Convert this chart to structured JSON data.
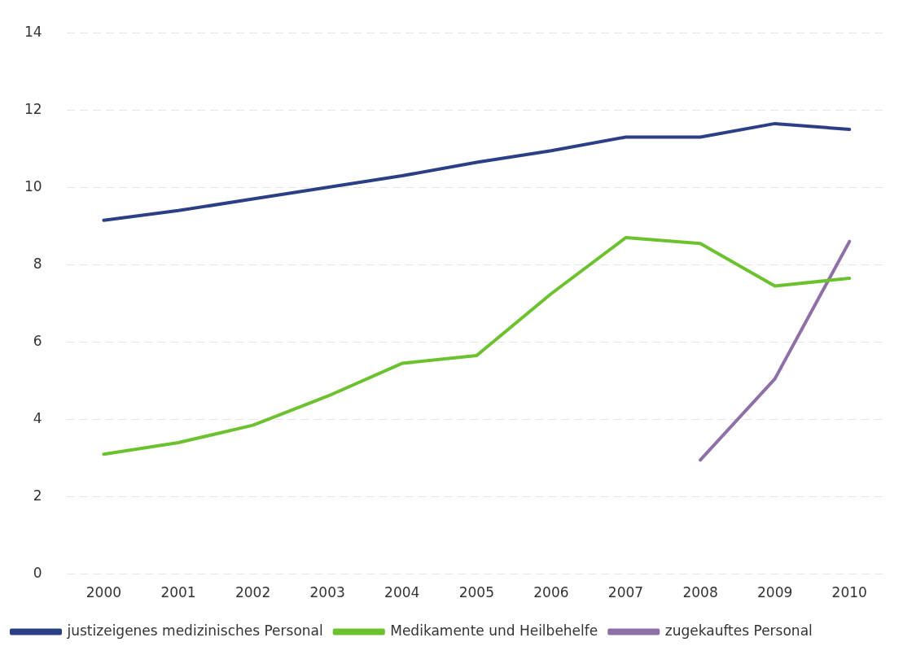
{
  "chart_data": {
    "type": "line",
    "categories": [
      "2000",
      "2001",
      "2002",
      "2003",
      "2004",
      "2005",
      "2006",
      "2007",
      "2008",
      "2009",
      "2010"
    ],
    "series": [
      {
        "name": "justizeigenes medizinisches Personal",
        "color": "#2b3f87",
        "values": [
          9.15,
          9.4,
          9.7,
          10.0,
          10.3,
          10.65,
          10.95,
          11.3,
          11.3,
          11.65,
          11.5
        ]
      },
      {
        "name": "Medikamente und Heilbehelfe",
        "color": "#6cc12f",
        "values": [
          3.1,
          3.4,
          3.85,
          4.6,
          5.45,
          5.65,
          7.25,
          8.7,
          8.55,
          7.45,
          7.65
        ]
      },
      {
        "name": "zugekauftes Personal",
        "color": "#8e6fa6",
        "values": [
          null,
          null,
          null,
          null,
          null,
          null,
          null,
          null,
          2.95,
          5.05,
          8.6
        ]
      }
    ],
    "ylim": [
      0,
      14
    ],
    "yticks": [
      0,
      2,
      4,
      6,
      8,
      10,
      12,
      14
    ],
    "grid": "y",
    "legend": "bottom left",
    "marker": "none",
    "line_style": "solid"
  }
}
